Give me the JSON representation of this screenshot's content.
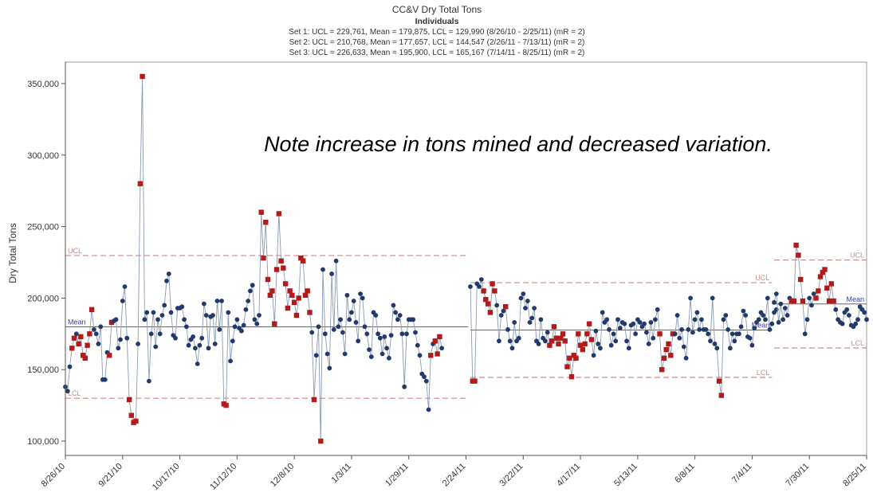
{
  "chart_data": {
    "type": "line",
    "title": "CC&V Dry Total Tons",
    "subtitle": "Individuals",
    "set_lines": [
      "Set 1: UCL = 229,761, Mean = 179,875, LCL = 129,990 (8/26/10 - 2/25/11) (mR = 2)",
      "Set 2: UCL = 210,768, Mean = 177,657, LCL = 144,547 (2/26/11 - 7/13/11) (mR = 2)",
      "Set 3: UCL = 226,633, Mean = 195,900, LCL = 165,167 (7/14/11 - 8/25/11) (mR = 2)"
    ],
    "annotation": "Note increase in tons mined and decreased variation.",
    "ylabel": "Dry Total Tons",
    "xlabel": "",
    "ylim": [
      90000,
      365000
    ],
    "xlim": [
      "2010-08-26",
      "2011-08-25"
    ],
    "yticks": [
      100000,
      150000,
      200000,
      250000,
      300000,
      350000
    ],
    "ytick_labels": [
      "100,000",
      "150,000",
      "200,000",
      "250,000",
      "300,000",
      "350,000"
    ],
    "xticks": [
      "2010-08-26",
      "2010-09-21",
      "2010-10-17",
      "2010-11-12",
      "2010-12-08",
      "2011-01-03",
      "2011-01-29",
      "2011-02-24",
      "2011-03-22",
      "2011-04-17",
      "2011-05-13",
      "2011-06-08",
      "2011-07-04",
      "2011-07-30",
      "2011-08-25"
    ],
    "xtick_labels": [
      "8/26/10",
      "9/21/10",
      "10/17/10",
      "11/12/10",
      "12/8/10",
      "1/3/11",
      "1/29/11",
      "2/24/11",
      "3/22/11",
      "4/17/11",
      "5/13/11",
      "6/8/11",
      "7/4/11",
      "7/30/11",
      "8/25/11"
    ],
    "grid": false,
    "legend": "none",
    "control_limits": [
      {
        "set": "Set 1",
        "start": "2010-08-26",
        "end": "2011-02-25",
        "ucl": 229761,
        "mean": 179875,
        "lcl": 129990
      },
      {
        "set": "Set 2",
        "start": "2011-02-26",
        "end": "2011-07-13",
        "ucl": 210768,
        "mean": 177657,
        "lcl": 144547
      },
      {
        "set": "Set 3",
        "start": "2011-07-14",
        "end": "2011-08-25",
        "ucl": 226633,
        "mean": 195900,
        "lcl": 165167
      }
    ],
    "limit_labels": {
      "ucl": "UCL",
      "mean": "Mean",
      "lcl": "LCL"
    },
    "colors": {
      "line": "#8a9bb5",
      "point": "#223a6b",
      "out_of_control": "#b31b1b",
      "hollow": "#e0a0a0",
      "limit": "#c98a8a",
      "mean": "#666666",
      "axis": "#555555"
    },
    "series": [
      {
        "start_date": "2010-08-26",
        "values": [
          138000,
          135000,
          152000,
          165000,
          172000,
          175000,
          168000,
          173000,
          160000,
          158000,
          167000,
          175000,
          192000,
          178000,
          175000,
          168000,
          180000,
          143000,
          143000,
          162000,
          160000,
          183000,
          184000,
          185000,
          165000,
          171000,
          198000,
          208000,
          172000,
          129000,
          118000,
          113000,
          114000,
          168000,
          280000,
          355000,
          185000,
          190000,
          142000,
          175000,
          190000,
          166000,
          185000,
          175000,
          188000,
          195000,
          212000,
          217000,
          190000,
          174000,
          172000,
          193000,
          193000,
          194000,
          185000,
          180000,
          167000,
          171000,
          173000,
          165000,
          154000,
          167000,
          172000,
          196000,
          188000,
          165000,
          187000,
          188000,
          168000,
          198000,
          178000,
          198000,
          126000,
          125000,
          190000,
          156000,
          170000,
          180000,
          185000,
          179000,
          177000,
          181000,
          192000,
          198000,
          205000,
          209000,
          185000,
          182000,
          188000,
          260000,
          228000,
          253000,
          213000,
          202000,
          205000,
          182000,
          220000,
          259000,
          226000,
          221000,
          210000,
          193000,
          205000,
          202000,
          197000,
          188000,
          200000,
          228000,
          226000,
          202000,
          205000,
          190000,
          176000,
          129000,
          160000,
          180000,
          100000,
          220000,
          175000,
          161000,
          151000,
          217000,
          178000,
          226000,
          180000,
          185000,
          176000,
          161000,
          202000,
          185000,
          190000,
          198000,
          183000,
          170000,
          203000,
          200000,
          180000,
          175000,
          164000,
          159000,
          190000,
          188000,
          175000,
          172000,
          161000,
          173000,
          165000,
          158000,
          174000,
          195000,
          190000,
          185000,
          188000,
          175000,
          138000,
          175000,
          185000,
          185000,
          185000,
          176000,
          167000,
          160000,
          147000,
          145000,
          142000,
          122000,
          160000,
          168000,
          170000,
          161000,
          173000,
          165000
        ],
        "out_of_control": [
          3,
          4,
          6,
          7,
          8,
          9,
          10,
          11,
          12,
          20,
          21,
          29,
          30,
          31,
          32,
          34,
          35,
          72,
          73,
          89,
          90,
          91,
          92,
          93,
          94,
          95,
          96,
          97,
          98,
          99,
          100,
          101,
          102,
          103,
          104,
          105,
          106,
          107,
          108,
          109,
          110,
          111,
          113,
          116,
          166,
          168,
          169,
          170
        ]
      },
      {
        "start_date": "2011-02-26",
        "values": [
          208000,
          142000,
          142000,
          210000,
          208000,
          213000,
          205000,
          199000,
          196000,
          190000,
          210000,
          205000,
          195000,
          170000,
          188000,
          191000,
          194000,
          178000,
          170000,
          165000,
          183000,
          170000,
          172000,
          200000,
          203000,
          193000,
          198000,
          183000,
          186000,
          193000,
          170000,
          168000,
          185000,
          172000,
          170000,
          176000,
          167000,
          170000,
          180000,
          172000,
          168000,
          172000,
          175000,
          170000,
          152000,
          158000,
          145000,
          160000,
          158000,
          175000,
          167000,
          164000,
          168000,
          175000,
          182000,
          171000,
          160000,
          177000,
          168000,
          165000,
          190000,
          183000,
          185000,
          178000,
          167000,
          175000,
          170000,
          185000,
          179000,
          183000,
          182000,
          170000,
          165000,
          181000,
          182000,
          175000,
          185000,
          183000,
          180000,
          182000,
          176000,
          168000,
          183000,
          172000,
          185000,
          192000,
          175000,
          150000,
          158000,
          164000,
          168000,
          160000,
          175000,
          175000,
          188000,
          172000,
          178000,
          166000,
          158000,
          178000,
          200000,
          176000,
          185000,
          190000,
          178000,
          185000,
          178000,
          178000,
          175000,
          170000,
          200000,
          168000,
          165000,
          142000,
          132000,
          185000,
          188000,
          178000,
          165000,
          175000,
          170000,
          175000,
          175000,
          180000,
          191000,
          188000,
          173000,
          172000,
          167000,
          179000,
          183000,
          185000,
          190000,
          188000,
          185000,
          200000,
          178000,
          182000,
          190000,
          192000
        ],
        "out_of_control": [
          1,
          2,
          6,
          7,
          8,
          9,
          10,
          11,
          16,
          36,
          37,
          38,
          39,
          40,
          41,
          42,
          43,
          44,
          45,
          46,
          47,
          48,
          49,
          50,
          51,
          52,
          53,
          54,
          55,
          86,
          87,
          88,
          89,
          90,
          91,
          92,
          113,
          114
        ]
      },
      {
        "start_date": "2011-07-14",
        "values": [
          197000,
          203000,
          183000,
          196000,
          185000,
          193000,
          188000,
          200000,
          198000,
          198000,
          237000,
          230000,
          213000,
          198000,
          175000,
          185000,
          200000,
          195000,
          203000,
          200000,
          205000,
          215000,
          218000,
          220000,
          207000,
          198000,
          210000,
          198000,
          192000,
          185000,
          183000,
          182000,
          190000,
          192000,
          188000,
          181000,
          180000,
          182000,
          185000,
          194000,
          192000,
          190000,
          185000
        ],
        "out_of_control": [
          8,
          9,
          10,
          11,
          12,
          13,
          19,
          20,
          21,
          22,
          23,
          24,
          25,
          26,
          27
        ]
      }
    ]
  }
}
